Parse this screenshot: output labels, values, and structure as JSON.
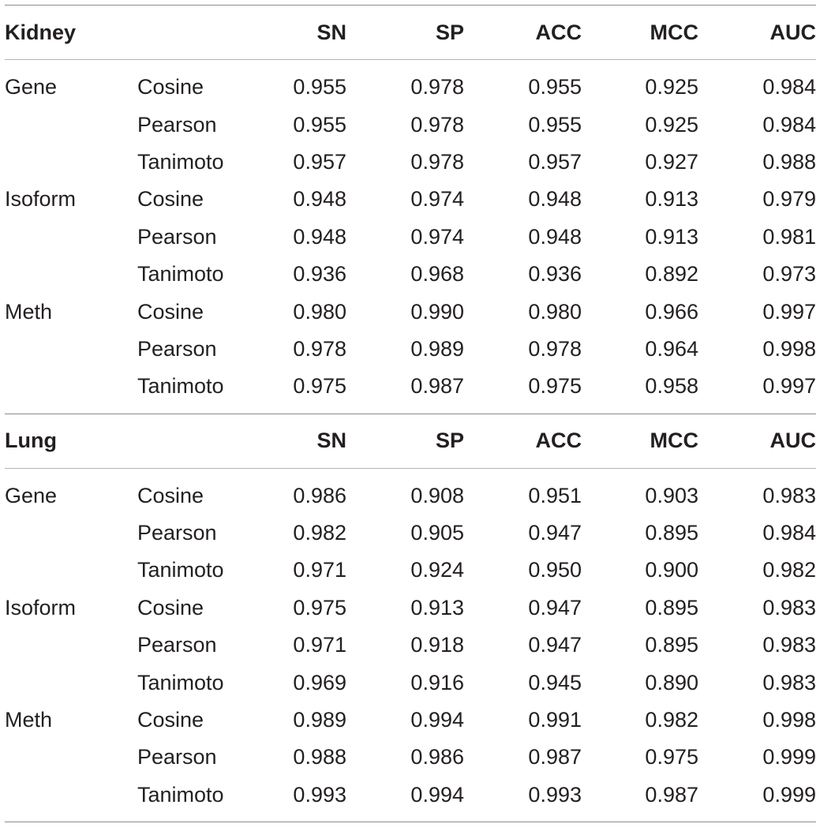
{
  "columns": [
    "SN",
    "SP",
    "ACC",
    "MCC",
    "AUC"
  ],
  "sections": [
    {
      "title": "Kidney",
      "rows": [
        {
          "group": "Gene",
          "method": "Cosine",
          "values": [
            "0.955",
            "0.978",
            "0.955",
            "0.925",
            "0.984"
          ]
        },
        {
          "group": "",
          "method": "Pearson",
          "values": [
            "0.955",
            "0.978",
            "0.955",
            "0.925",
            "0.984"
          ]
        },
        {
          "group": "",
          "method": "Tanimoto",
          "values": [
            "0.957",
            "0.978",
            "0.957",
            "0.927",
            "0.988"
          ]
        },
        {
          "group": "Isoform",
          "method": "Cosine",
          "values": [
            "0.948",
            "0.974",
            "0.948",
            "0.913",
            "0.979"
          ]
        },
        {
          "group": "",
          "method": "Pearson",
          "values": [
            "0.948",
            "0.974",
            "0.948",
            "0.913",
            "0.981"
          ]
        },
        {
          "group": "",
          "method": "Tanimoto",
          "values": [
            "0.936",
            "0.968",
            "0.936",
            "0.892",
            "0.973"
          ]
        },
        {
          "group": "Meth",
          "method": "Cosine",
          "values": [
            "0.980",
            "0.990",
            "0.980",
            "0.966",
            "0.997"
          ]
        },
        {
          "group": "",
          "method": "Pearson",
          "values": [
            "0.978",
            "0.989",
            "0.978",
            "0.964",
            "0.998"
          ]
        },
        {
          "group": "",
          "method": "Tanimoto",
          "values": [
            "0.975",
            "0.987",
            "0.975",
            "0.958",
            "0.997"
          ]
        }
      ]
    },
    {
      "title": "Lung",
      "rows": [
        {
          "group": "Gene",
          "method": "Cosine",
          "values": [
            "0.986",
            "0.908",
            "0.951",
            "0.903",
            "0.983"
          ]
        },
        {
          "group": "",
          "method": "Pearson",
          "values": [
            "0.982",
            "0.905",
            "0.947",
            "0.895",
            "0.984"
          ]
        },
        {
          "group": "",
          "method": "Tanimoto",
          "values": [
            "0.971",
            "0.924",
            "0.950",
            "0.900",
            "0.982"
          ]
        },
        {
          "group": "Isoform",
          "method": "Cosine",
          "values": [
            "0.975",
            "0.913",
            "0.947",
            "0.895",
            "0.983"
          ]
        },
        {
          "group": "",
          "method": "Pearson",
          "values": [
            "0.971",
            "0.918",
            "0.947",
            "0.895",
            "0.983"
          ]
        },
        {
          "group": "",
          "method": "Tanimoto",
          "values": [
            "0.969",
            "0.916",
            "0.945",
            "0.890",
            "0.983"
          ]
        },
        {
          "group": "Meth",
          "method": "Cosine",
          "values": [
            "0.989",
            "0.994",
            "0.991",
            "0.982",
            "0.998"
          ]
        },
        {
          "group": "",
          "method": "Pearson",
          "values": [
            "0.988",
            "0.986",
            "0.987",
            "0.975",
            "0.999"
          ]
        },
        {
          "group": "",
          "method": "Tanimoto",
          "values": [
            "0.993",
            "0.994",
            "0.993",
            "0.987",
            "0.999"
          ]
        }
      ]
    }
  ]
}
